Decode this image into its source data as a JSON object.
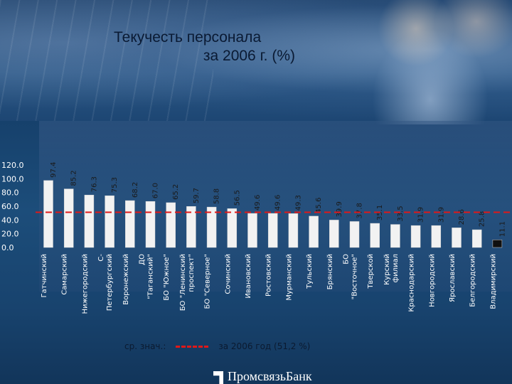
{
  "title": {
    "line1": "Текучесть персонала",
    "line2": "за 2006 г. (%)"
  },
  "legend": {
    "label": "ср. знач.:",
    "series_label": "за 2006 год (51,2 %)"
  },
  "footer": {
    "brand": "ПромсвязьБанк"
  },
  "colors": {
    "bar_light": "#f2f2f2",
    "bar_dark": "#101010",
    "average_line": "#e01818"
  },
  "chart_data": {
    "type": "bar",
    "title": "Текучесть персонала за 2006 г. (%)",
    "ylim": [
      0,
      120
    ],
    "yticks": [
      "120.0",
      "100.0",
      "80.0",
      "60.0",
      "40.0",
      "20.0",
      "0.0"
    ],
    "average": 51.2,
    "categories": [
      "Гатчинский",
      "Самарский",
      "Нижегородский",
      "С-Петербургский",
      "Воронежский",
      "ДО \"Таганский\"",
      "БО \"Южное\"",
      "БО \"Ленинский проспект\"",
      "БО \"Северное\"",
      "Сочинский",
      "Ивановский",
      "Ростовский",
      "Мурманский",
      "Тульский",
      "Брянский",
      "БО \"Восточное\"",
      "Тверской",
      "Курский филиал",
      "Краснодарский",
      "Новгородский",
      "Ярославский",
      "Белгородский",
      "Владимирский"
    ],
    "category_lines": [
      [
        "Гатчинский"
      ],
      [
        "Самарский"
      ],
      [
        "Нижегородский"
      ],
      [
        "С-",
        "Петербургский"
      ],
      [
        "Воронежский"
      ],
      [
        "ДО",
        "\"Таганский\""
      ],
      [
        "БО \"Южное\""
      ],
      [
        "БО \"Ленинский",
        "проспект\""
      ],
      [
        "БО \"Северное\""
      ],
      [
        "Сочинский"
      ],
      [
        "Ивановский"
      ],
      [
        "Ростовский"
      ],
      [
        "Мурманский"
      ],
      [
        "Тульский"
      ],
      [
        "Брянский"
      ],
      [
        "БО",
        "\"Восточное\""
      ],
      [
        "Тверской"
      ],
      [
        "Курский",
        "филиал"
      ],
      [
        "Краснодарский"
      ],
      [
        "Новгородский"
      ],
      [
        "Ярославский"
      ],
      [
        "Белгородский"
      ],
      [
        "Владимирский"
      ]
    ],
    "values": [
      97.4,
      85.2,
      76.3,
      75.3,
      68.2,
      67.0,
      65.2,
      59.7,
      58.8,
      56.5,
      49.6,
      49.6,
      49.3,
      45.6,
      39.9,
      37.8,
      35.1,
      33.5,
      31.9,
      31.9,
      28.6,
      25.8,
      11.1
    ],
    "value_labels": [
      "97.4",
      "85.2",
      "76.3",
      "75.3",
      "68.2",
      "67.0",
      "65.2",
      "59.7",
      "58.8",
      "56.5",
      "49.6",
      "49.6",
      "49.3",
      "45.6",
      "39.9",
      "37.8",
      "35.1",
      "33.5",
      "31.9",
      "31.9",
      "28.6",
      "25.8",
      "11.1"
    ],
    "grid": false,
    "legend_position": "bottom-center"
  }
}
